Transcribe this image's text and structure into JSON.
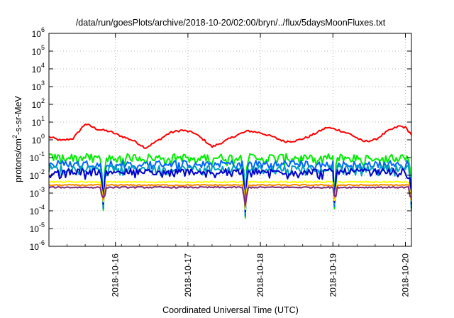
{
  "chart_data": {
    "type": "line",
    "title": "/data/run/goesPlots/archive/2018-10-20/02:00/bryn/../flux/5daysMoonFluxes.txt",
    "xlabel": "Coordinated Universal Time (UTC)",
    "ylabel": {
      "pre": "protons/cm",
      "sup": "2",
      "post": "-s-sr-MeV"
    },
    "x_range": [
      "2018-10-15T02:00",
      "2018-10-20T02:00"
    ],
    "x_ticks": [
      "2018-10-16",
      "2018-10-17",
      "2018-10-18",
      "2018-10-19",
      "2018-10-20"
    ],
    "y_scale": "log",
    "y_range": [
      1e-06,
      1000000.0
    ],
    "y_ticks": [
      {
        "base": "10",
        "exp": "-6"
      },
      {
        "base": "10",
        "exp": "-5"
      },
      {
        "base": "10",
        "exp": "-4"
      },
      {
        "base": "10",
        "exp": "-3"
      },
      {
        "base": "10",
        "exp": "-2"
      },
      {
        "base": "10",
        "exp": "-1"
      },
      {
        "base": "10",
        "exp": "0"
      },
      {
        "base": "10",
        "exp": "1"
      },
      {
        "base": "10",
        "exp": "2"
      },
      {
        "base": "10",
        "exp": "3"
      },
      {
        "base": "10",
        "exp": "4"
      },
      {
        "base": "10",
        "exp": "5"
      },
      {
        "base": "10",
        "exp": "6"
      }
    ],
    "grid": true,
    "dips": [
      {
        "x": "2018-10-15T20:00",
        "min": 8e-05
      },
      {
        "x": "2018-10-17T19:00",
        "min": 3e-05
      },
      {
        "x": "2018-10-19T00:40",
        "min": 0.0001
      },
      {
        "x": "2018-10-20T02:00",
        "min": 8e-05
      }
    ],
    "series": [
      {
        "color": "#ff0000",
        "points": [
          [
            "2018-10-15T02:00",
            1.5
          ],
          [
            "2018-10-15T06:00",
            0.9
          ],
          [
            "2018-10-15T10:00",
            1.2
          ],
          [
            "2018-10-15T14:00",
            8.0
          ],
          [
            "2018-10-15T18:00",
            4.0
          ],
          [
            "2018-10-15T22:00",
            3.0
          ],
          [
            "2018-10-16T02:00",
            1.6
          ],
          [
            "2018-10-16T06:00",
            0.9
          ],
          [
            "2018-10-16T10:00",
            0.35
          ],
          [
            "2018-10-16T14:00",
            0.9
          ],
          [
            "2018-10-16T18:00",
            2.5
          ],
          [
            "2018-10-16T22:00",
            3.5
          ],
          [
            "2018-10-17T02:00",
            2.5
          ],
          [
            "2018-10-17T06:00",
            0.8
          ],
          [
            "2018-10-17T08:00",
            0.4
          ],
          [
            "2018-10-17T12:00",
            0.8
          ],
          [
            "2018-10-17T16:00",
            1.8
          ],
          [
            "2018-10-17T20:00",
            3.2
          ],
          [
            "2018-10-18T00:00",
            2.5
          ],
          [
            "2018-10-18T04:00",
            1.5
          ],
          [
            "2018-10-18T08:00",
            0.8
          ],
          [
            "2018-10-18T12:00",
            0.9
          ],
          [
            "2018-10-18T16:00",
            1.5
          ],
          [
            "2018-10-18T22:00",
            5.0
          ],
          [
            "2018-10-19T02:00",
            3.5
          ],
          [
            "2018-10-19T06:00",
            2.0
          ],
          [
            "2018-10-19T10:00",
            0.8
          ],
          [
            "2018-10-19T14:00",
            1.0
          ],
          [
            "2018-10-19T18:00",
            3.0
          ],
          [
            "2018-10-19T22:00",
            6.0
          ],
          [
            "2018-10-20T00:00",
            5.0
          ],
          [
            "2018-10-20T02:00",
            2.0
          ]
        ]
      },
      {
        "color": "#00ee00",
        "level": 0.1,
        "noise": 0.22
      },
      {
        "color": "#0066ff",
        "level": 0.045,
        "noise": 0.2
      },
      {
        "color": "#00a0c0",
        "level": 0.025,
        "noise": 0.18
      },
      {
        "color": "#0000cc",
        "level": 0.016,
        "noise": 0.18
      },
      {
        "color": "#ffff00",
        "level": 0.0042,
        "noise": 0.04
      },
      {
        "color": "#ff8c00",
        "level": 0.0028,
        "noise": 0.04
      },
      {
        "color": "#7a2a7a",
        "level": 0.0021,
        "noise": 0.04
      }
    ]
  }
}
